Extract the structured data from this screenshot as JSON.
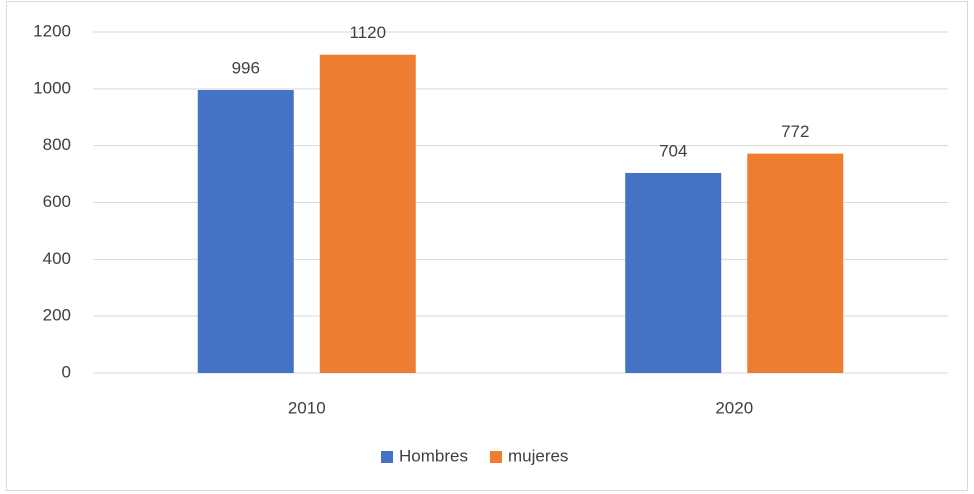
{
  "chart_data": {
    "type": "bar",
    "categories": [
      "2010",
      "2020"
    ],
    "series": [
      {
        "name": "Hombres",
        "color": "#4472c4",
        "values": [
          996,
          704
        ]
      },
      {
        "name": "mujeres",
        "color": "#ed7d31",
        "values": [
          1120,
          772
        ]
      }
    ],
    "ylim": [
      0,
      1200
    ],
    "yticks": [
      0,
      200,
      400,
      600,
      800,
      1000,
      1200
    ],
    "grid": true,
    "legend": "bottom",
    "data_labels": true
  }
}
